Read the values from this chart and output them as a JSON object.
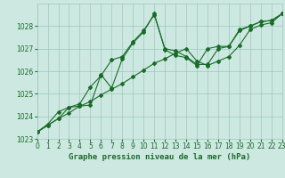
{
  "title": "Graphe pression niveau de la mer (hPa)",
  "background_color": "#cce8e0",
  "grid_color": "#9ec8be",
  "line_color": "#1a6b2a",
  "marker_color": "#1a6b2a",
  "xmin": 0,
  "xmax": 23,
  "ymin": 1023,
  "ymax": 1029,
  "yticks": [
    1023,
    1024,
    1025,
    1026,
    1027,
    1028
  ],
  "xticks": [
    0,
    1,
    2,
    3,
    4,
    5,
    6,
    7,
    8,
    9,
    10,
    11,
    12,
    13,
    14,
    15,
    16,
    17,
    18,
    19,
    20,
    21,
    22,
    23
  ],
  "series1_x": [
    0,
    1,
    2,
    3,
    4,
    5,
    6,
    7,
    8,
    9,
    10,
    11,
    12,
    13,
    14,
    15,
    16,
    17,
    18,
    19,
    20,
    21,
    22,
    23
  ],
  "series1_y": [
    1023.3,
    1023.6,
    1023.9,
    1024.15,
    1024.45,
    1024.65,
    1024.95,
    1025.2,
    1025.45,
    1025.75,
    1026.05,
    1026.35,
    1026.55,
    1026.8,
    1027.0,
    1026.45,
    1026.25,
    1026.45,
    1026.65,
    1027.15,
    1027.85,
    1028.05,
    1028.15,
    1028.55
  ],
  "series2_x": [
    0,
    1,
    2,
    3,
    4,
    5,
    6,
    7,
    8,
    9,
    10,
    11,
    12,
    13,
    14,
    15,
    16,
    17,
    18,
    19,
    20,
    21,
    22,
    23
  ],
  "series2_y": [
    1023.3,
    1023.65,
    1024.2,
    1024.4,
    1024.45,
    1024.5,
    1025.85,
    1025.25,
    1026.55,
    1027.25,
    1027.75,
    1028.55,
    1026.95,
    1026.7,
    1026.6,
    1026.25,
    1027.0,
    1027.1,
    1027.1,
    1027.85,
    1028.0,
    1028.2,
    1028.25,
    1028.55
  ],
  "series3_x": [
    0,
    1,
    2,
    3,
    4,
    5,
    6,
    7,
    8,
    9,
    10,
    11,
    12,
    13,
    14,
    15,
    16,
    17,
    18,
    19,
    20,
    21,
    22,
    23
  ],
  "series3_y": [
    1023.3,
    1023.6,
    1023.9,
    1024.4,
    1024.55,
    1025.3,
    1025.8,
    1026.5,
    1026.65,
    1027.3,
    1027.8,
    1028.5,
    1027.0,
    1026.9,
    1026.65,
    1026.3,
    1026.3,
    1027.0,
    1027.1,
    1027.8,
    1028.0,
    1028.2,
    1028.25,
    1028.55
  ],
  "title_fontsize": 6.5,
  "tick_fontsize": 5.5
}
